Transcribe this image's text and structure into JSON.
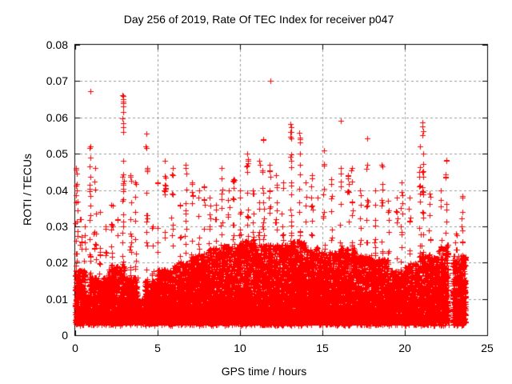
{
  "chart_data": {
    "type": "scatter",
    "title": "Day 256 of 2019, Rate Of TEC Index for receiver p047",
    "xlabel": "GPS time / hours",
    "ylabel": "ROTI / TECUs",
    "xlim": [
      0,
      25
    ],
    "ylim": [
      0,
      0.08
    ],
    "xticks": [
      0,
      5,
      10,
      15,
      20,
      25
    ],
    "xtick_labels": [
      "0",
      "5",
      "10",
      "15",
      "20",
      "25"
    ],
    "yticks": [
      0,
      0.01,
      0.02,
      0.03,
      0.04,
      0.05,
      0.06,
      0.07,
      0.08
    ],
    "ytick_labels": [
      "0",
      "0.01",
      "0.02",
      "0.03",
      "0.04",
      "0.05",
      "0.06",
      "0.07",
      "0.08"
    ],
    "grid": "dashed lines at major ticks, both axes",
    "ticks": "inward, mirrored on top and right borders",
    "legend": "none",
    "marker": "plus",
    "marker_size_px": 7,
    "marker_color": "#ff0000",
    "grid_color": "#999999",
    "axis_color": "#000000",
    "background_color": "#ffffff",
    "data_time_range_hours": [
      0,
      23.7
    ],
    "band_bottom_v": 0.0035,
    "band_segments_format": [
      "t_start_h",
      "t_end_h",
      "v_top_of_dense_band_TECU",
      "point_count"
    ],
    "band_segments": [
      [
        0.0,
        0.6,
        0.018,
        380
      ],
      [
        0.6,
        0.85,
        0.011,
        110
      ],
      [
        0.85,
        2.0,
        0.016,
        700
      ],
      [
        2.0,
        3.0,
        0.019,
        620
      ],
      [
        3.0,
        3.8,
        0.016,
        480
      ],
      [
        3.8,
        4.2,
        0.01,
        160
      ],
      [
        4.2,
        5.0,
        0.015,
        480
      ],
      [
        5.0,
        6.0,
        0.018,
        620
      ],
      [
        6.0,
        7.0,
        0.02,
        650
      ],
      [
        7.0,
        8.0,
        0.022,
        680
      ],
      [
        8.0,
        9.0,
        0.024,
        700
      ],
      [
        9.0,
        10.0,
        0.025,
        700
      ],
      [
        10.0,
        11.0,
        0.026,
        720
      ],
      [
        11.0,
        12.0,
        0.025,
        700
      ],
      [
        12.0,
        13.0,
        0.025,
        700
      ],
      [
        13.0,
        14.0,
        0.026,
        720
      ],
      [
        14.0,
        15.0,
        0.024,
        700
      ],
      [
        15.0,
        16.0,
        0.023,
        680
      ],
      [
        16.0,
        17.0,
        0.024,
        680
      ],
      [
        17.0,
        18.0,
        0.022,
        650
      ],
      [
        18.0,
        19.0,
        0.021,
        620
      ],
      [
        19.0,
        20.0,
        0.018,
        560
      ],
      [
        20.0,
        21.0,
        0.02,
        600
      ],
      [
        21.0,
        22.0,
        0.022,
        620
      ],
      [
        22.0,
        22.65,
        0.025,
        420
      ],
      [
        22.9,
        23.3,
        0.022,
        260
      ],
      [
        23.35,
        23.7,
        0.022,
        240
      ]
    ],
    "columns_format": [
      "t_center_h",
      "v_max_TECU",
      "point_count"
    ],
    "columns": [
      [
        0.07,
        0.046,
        16
      ],
      [
        0.12,
        0.04,
        14
      ],
      [
        0.35,
        0.032,
        12
      ],
      [
        0.6,
        0.03,
        10
      ],
      [
        0.9,
        0.052,
        22
      ],
      [
        1.2,
        0.046,
        16
      ],
      [
        1.5,
        0.034,
        12
      ],
      [
        1.85,
        0.03,
        10
      ],
      [
        2.2,
        0.036,
        14
      ],
      [
        2.55,
        0.032,
        12
      ],
      [
        2.9,
        0.048,
        26
      ],
      [
        3.35,
        0.044,
        20
      ],
      [
        3.65,
        0.042,
        16
      ],
      [
        4.35,
        0.046,
        18
      ],
      [
        4.7,
        0.03,
        8
      ],
      [
        5.0,
        0.042,
        14
      ],
      [
        5.45,
        0.048,
        20
      ],
      [
        5.9,
        0.046,
        18
      ],
      [
        6.35,
        0.036,
        12
      ],
      [
        6.7,
        0.047,
        22
      ],
      [
        7.1,
        0.042,
        16
      ],
      [
        7.5,
        0.04,
        16
      ],
      [
        7.8,
        0.041,
        14
      ],
      [
        8.15,
        0.038,
        14
      ],
      [
        8.55,
        0.036,
        12
      ],
      [
        8.9,
        0.046,
        20
      ],
      [
        9.3,
        0.04,
        16
      ],
      [
        9.6,
        0.043,
        18
      ],
      [
        10.0,
        0.04,
        16
      ],
      [
        10.45,
        0.05,
        24
      ],
      [
        10.8,
        0.04,
        14
      ],
      [
        11.15,
        0.048,
        18
      ],
      [
        11.4,
        0.054,
        22
      ],
      [
        11.8,
        0.047,
        18
      ],
      [
        12.2,
        0.044,
        16
      ],
      [
        12.6,
        0.042,
        16
      ],
      [
        13.1,
        0.056,
        26
      ],
      [
        13.65,
        0.054,
        24
      ],
      [
        14.0,
        0.042,
        16
      ],
      [
        14.35,
        0.044,
        18
      ],
      [
        14.7,
        0.038,
        12
      ],
      [
        15.1,
        0.051,
        20
      ],
      [
        15.55,
        0.043,
        18
      ],
      [
        16.1,
        0.046,
        16
      ],
      [
        16.55,
        0.044,
        18
      ],
      [
        16.8,
        0.046,
        16
      ],
      [
        17.3,
        0.04,
        14
      ],
      [
        17.7,
        0.047,
        16
      ],
      [
        18.2,
        0.04,
        14
      ],
      [
        18.6,
        0.047,
        18
      ],
      [
        19.0,
        0.037,
        12
      ],
      [
        19.5,
        0.038,
        12
      ],
      [
        19.8,
        0.042,
        14
      ],
      [
        20.3,
        0.038,
        14
      ],
      [
        20.9,
        0.052,
        26
      ],
      [
        21.1,
        0.05,
        22
      ],
      [
        21.5,
        0.039,
        14
      ],
      [
        22.2,
        0.04,
        14
      ],
      [
        22.5,
        0.048,
        16
      ],
      [
        23.1,
        0.028,
        10
      ],
      [
        23.5,
        0.038,
        12
      ]
    ],
    "outlier_points_format": [
      "t_h",
      "v_TECU"
    ],
    "outlier_points": [
      [
        0.05,
        0.0456
      ],
      [
        0.92,
        0.0672
      ],
      [
        0.88,
        0.0515
      ],
      [
        0.9,
        0.049
      ],
      [
        2.87,
        0.0662
      ],
      [
        2.9,
        0.0658
      ],
      [
        2.93,
        0.065
      ],
      [
        2.89,
        0.0643
      ],
      [
        2.91,
        0.064
      ],
      [
        2.9,
        0.063
      ],
      [
        2.92,
        0.0615
      ],
      [
        2.88,
        0.0598
      ],
      [
        2.9,
        0.0585
      ],
      [
        2.91,
        0.0572
      ],
      [
        2.89,
        0.056
      ],
      [
        4.32,
        0.0555
      ],
      [
        4.29,
        0.0521
      ],
      [
        4.31,
        0.0515
      ],
      [
        11.84,
        0.07
      ],
      [
        13.05,
        0.0582
      ],
      [
        13.1,
        0.0572
      ],
      [
        13.07,
        0.056
      ],
      [
        13.6,
        0.0558
      ],
      [
        13.66,
        0.0544
      ],
      [
        13.63,
        0.0532
      ],
      [
        16.1,
        0.059
      ],
      [
        17.72,
        0.0542
      ],
      [
        21.05,
        0.0586
      ],
      [
        21.08,
        0.0575
      ],
      [
        21.1,
        0.0562
      ],
      [
        21.06,
        0.055
      ],
      [
        22.5,
        0.0482
      ],
      [
        23.5,
        0.0383
      ]
    ]
  }
}
